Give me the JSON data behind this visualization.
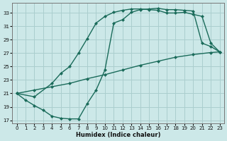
{
  "xlabel": "Humidex (Indice chaleur)",
  "bg_color": "#cce8e8",
  "line_color": "#1a6b5a",
  "grid_color": "#aacece",
  "xlim": [
    -0.5,
    23.5
  ],
  "ylim": [
    16.5,
    34.5
  ],
  "yticks": [
    17,
    19,
    21,
    23,
    25,
    27,
    29,
    31,
    33
  ],
  "xticks": [
    0,
    1,
    2,
    3,
    4,
    5,
    6,
    7,
    8,
    9,
    10,
    11,
    12,
    13,
    14,
    15,
    16,
    17,
    18,
    19,
    20,
    21,
    22,
    23
  ],
  "curve1_x": [
    0,
    1,
    2,
    3,
    4,
    5,
    6,
    7,
    8,
    9,
    10,
    11,
    12,
    13,
    14,
    15,
    16,
    17,
    18,
    19,
    20,
    21,
    22,
    23
  ],
  "curve1_y": [
    21.0,
    20.0,
    19.2,
    18.5,
    17.6,
    17.3,
    17.2,
    17.2,
    19.5,
    21.5,
    24.5,
    31.5,
    32.0,
    33.1,
    33.5,
    33.6,
    33.7,
    33.5,
    33.5,
    33.4,
    33.3,
    28.5,
    28.0,
    27.2
  ],
  "curve2_x": [
    0,
    2,
    4,
    5,
    6,
    7,
    8,
    9,
    10,
    11,
    12,
    13,
    14,
    15,
    16,
    17,
    18,
    19,
    20,
    21,
    22,
    23
  ],
  "curve2_y": [
    21.0,
    20.5,
    22.5,
    24.0,
    25.0,
    27.0,
    29.2,
    31.5,
    32.5,
    33.1,
    33.4,
    33.6,
    33.6,
    33.5,
    33.4,
    33.0,
    33.0,
    33.1,
    32.8,
    32.5,
    28.5,
    27.2
  ],
  "curve3_x": [
    0,
    2,
    4,
    6,
    8,
    10,
    12,
    14,
    16,
    18,
    20,
    22,
    23
  ],
  "curve3_y": [
    21.0,
    21.5,
    22.0,
    22.5,
    23.2,
    23.8,
    24.5,
    25.2,
    25.8,
    26.4,
    26.8,
    27.1,
    27.2
  ]
}
